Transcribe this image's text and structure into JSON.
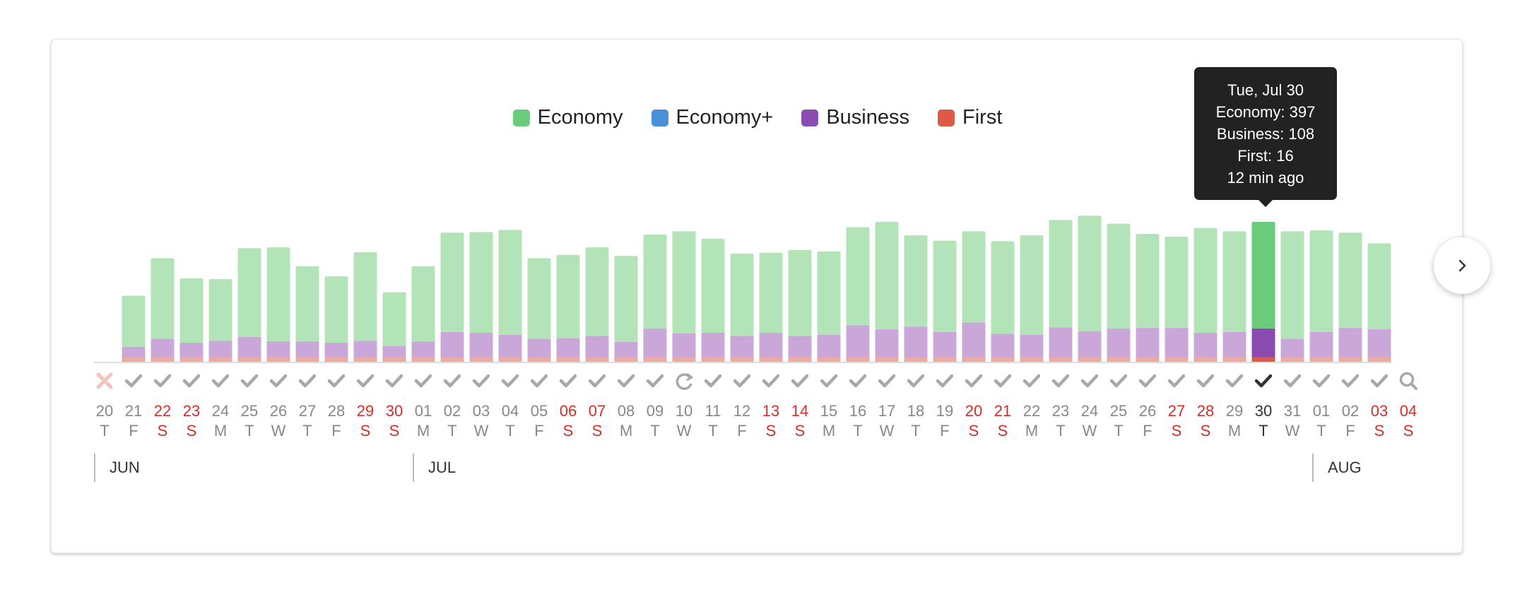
{
  "legend": [
    {
      "label": "Economy",
      "color": "#6acb7a"
    },
    {
      "label": "Economy+",
      "color": "#4a90d9"
    },
    {
      "label": "Business",
      "color": "#8a4cb0"
    },
    {
      "label": "First",
      "color": "#dc5a47"
    }
  ],
  "tooltip": {
    "date": "Tue, Jul 30",
    "economy": "Economy: 397",
    "business": "Business: 108",
    "first": "First: 16",
    "age": "12 min ago"
  },
  "months": [
    {
      "label": "JUN",
      "day_index": 0
    },
    {
      "label": "JUL",
      "day_index": 11
    },
    {
      "label": "AUG",
      "day_index": 42
    }
  ],
  "next_button_icon": "chevron-right-icon",
  "colors": {
    "economy_faded": "#b3e4b8",
    "business_faded": "#c9a8d9",
    "first_faded": "#eeaaa0",
    "economy": "#6acb7a",
    "business": "#8a4cb0",
    "first": "#dc5a47",
    "weekend_text": "#d0302a",
    "weekday_text": "#888888",
    "status_gray": "#a8a8a8",
    "error_icon": "#f2c4bc",
    "selected_text": "#333333"
  },
  "chart_data": {
    "type": "bar",
    "stacked": true,
    "series_order": [
      "First",
      "Business",
      "Economy"
    ],
    "days": [
      {
        "day": "20",
        "dow": "T",
        "weekend": false,
        "status": "error"
      },
      {
        "day": "21",
        "dow": "F",
        "weekend": false,
        "status": "check",
        "economy": 190,
        "business": 40,
        "first": 16
      },
      {
        "day": "22",
        "dow": "S",
        "weekend": true,
        "status": "check",
        "economy": 300,
        "business": 70,
        "first": 16
      },
      {
        "day": "23",
        "dow": "S",
        "weekend": true,
        "status": "check",
        "economy": 240,
        "business": 55,
        "first": 16
      },
      {
        "day": "24",
        "dow": "M",
        "weekend": false,
        "status": "check",
        "economy": 230,
        "business": 62,
        "first": 16
      },
      {
        "day": "25",
        "dow": "T",
        "weekend": false,
        "status": "check",
        "economy": 330,
        "business": 77,
        "first": 16
      },
      {
        "day": "26",
        "dow": "W",
        "weekend": false,
        "status": "check",
        "economy": 350,
        "business": 60,
        "first": 16
      },
      {
        "day": "27",
        "dow": "T",
        "weekend": false,
        "status": "check",
        "economy": 280,
        "business": 60,
        "first": 16
      },
      {
        "day": "28",
        "dow": "F",
        "weekend": false,
        "status": "check",
        "economy": 247,
        "business": 55,
        "first": 16
      },
      {
        "day": "29",
        "dow": "S",
        "weekend": true,
        "status": "check",
        "economy": 330,
        "business": 62,
        "first": 16
      },
      {
        "day": "30",
        "dow": "S",
        "weekend": true,
        "status": "check",
        "economy": 200,
        "business": 43,
        "first": 16
      },
      {
        "day": "01",
        "dow": "M",
        "weekend": false,
        "status": "check",
        "economy": 280,
        "business": 60,
        "first": 16
      },
      {
        "day": "02",
        "dow": "T",
        "weekend": false,
        "status": "check",
        "economy": 370,
        "business": 95,
        "first": 16
      },
      {
        "day": "03",
        "dow": "W",
        "weekend": false,
        "status": "check",
        "economy": 375,
        "business": 92,
        "first": 16
      },
      {
        "day": "04",
        "dow": "T",
        "weekend": false,
        "status": "check",
        "economy": 390,
        "business": 85,
        "first": 16
      },
      {
        "day": "05",
        "dow": "F",
        "weekend": false,
        "status": "check",
        "economy": 300,
        "business": 70,
        "first": 16
      },
      {
        "day": "06",
        "dow": "S",
        "weekend": true,
        "status": "check",
        "economy": 310,
        "business": 72,
        "first": 16
      },
      {
        "day": "07",
        "dow": "S",
        "weekend": true,
        "status": "check",
        "economy": 330,
        "business": 80,
        "first": 16
      },
      {
        "day": "08",
        "dow": "M",
        "weekend": false,
        "status": "check",
        "economy": 320,
        "business": 58,
        "first": 16
      },
      {
        "day": "09",
        "dow": "T",
        "weekend": false,
        "status": "check",
        "economy": 350,
        "business": 108,
        "first": 16
      },
      {
        "day": "10",
        "dow": "W",
        "weekend": false,
        "status": "refresh",
        "economy": 380,
        "business": 90,
        "first": 16
      },
      {
        "day": "11",
        "dow": "T",
        "weekend": false,
        "status": "check",
        "economy": 350,
        "business": 92,
        "first": 16
      },
      {
        "day": "12",
        "dow": "F",
        "weekend": false,
        "status": "check",
        "economy": 307,
        "business": 80,
        "first": 16
      },
      {
        "day": "13",
        "dow": "S",
        "weekend": true,
        "status": "check",
        "economy": 298,
        "business": 92,
        "first": 16
      },
      {
        "day": "14",
        "dow": "S",
        "weekend": true,
        "status": "check",
        "economy": 320,
        "business": 80,
        "first": 16
      },
      {
        "day": "15",
        "dow": "M",
        "weekend": false,
        "status": "check",
        "economy": 310,
        "business": 85,
        "first": 16
      },
      {
        "day": "16",
        "dow": "T",
        "weekend": false,
        "status": "check",
        "economy": 365,
        "business": 120,
        "first": 16
      },
      {
        "day": "17",
        "dow": "W",
        "weekend": false,
        "status": "check",
        "economy": 400,
        "business": 105,
        "first": 16
      },
      {
        "day": "18",
        "dow": "T",
        "weekend": false,
        "status": "check",
        "economy": 340,
        "business": 115,
        "first": 16
      },
      {
        "day": "19",
        "dow": "F",
        "weekend": false,
        "status": "check",
        "economy": 340,
        "business": 95,
        "first": 16
      },
      {
        "day": "20",
        "dow": "S",
        "weekend": true,
        "status": "check",
        "economy": 340,
        "business": 130,
        "first": 16
      },
      {
        "day": "21",
        "dow": "S",
        "weekend": true,
        "status": "check",
        "economy": 345,
        "business": 88,
        "first": 16
      },
      {
        "day": "22",
        "dow": "M",
        "weekend": false,
        "status": "check",
        "economy": 370,
        "business": 85,
        "first": 16
      },
      {
        "day": "23",
        "dow": "T",
        "weekend": false,
        "status": "check",
        "economy": 400,
        "business": 112,
        "first": 16
      },
      {
        "day": "24",
        "dow": "W",
        "weekend": false,
        "status": "check",
        "economy": 430,
        "business": 98,
        "first": 16
      },
      {
        "day": "25",
        "dow": "T",
        "weekend": false,
        "status": "check",
        "economy": 390,
        "business": 108,
        "first": 16
      },
      {
        "day": "26",
        "dow": "F",
        "weekend": false,
        "status": "check",
        "economy": 350,
        "business": 110,
        "first": 16
      },
      {
        "day": "27",
        "dow": "S",
        "weekend": true,
        "status": "check",
        "economy": 340,
        "business": 110,
        "first": 16
      },
      {
        "day": "28",
        "dow": "S",
        "weekend": true,
        "status": "check",
        "economy": 390,
        "business": 92,
        "first": 16
      },
      {
        "day": "29",
        "dow": "M",
        "weekend": false,
        "status": "check",
        "economy": 375,
        "business": 95,
        "first": 16
      },
      {
        "day": "30",
        "dow": "T",
        "weekend": false,
        "status": "selected",
        "economy": 397,
        "business": 108,
        "first": 16
      },
      {
        "day": "31",
        "dow": "W",
        "weekend": false,
        "status": "check",
        "economy": 400,
        "business": 70,
        "first": 16
      },
      {
        "day": "01",
        "dow": "T",
        "weekend": false,
        "status": "check",
        "economy": 378,
        "business": 95,
        "first": 16
      },
      {
        "day": "02",
        "dow": "F",
        "weekend": false,
        "status": "check",
        "economy": 355,
        "business": 110,
        "first": 16
      },
      {
        "day": "03",
        "dow": "S",
        "weekend": true,
        "status": "check",
        "economy": 320,
        "business": 105,
        "first": 16
      },
      {
        "day": "04",
        "dow": "S",
        "weekend": true,
        "status": "search"
      }
    ]
  }
}
